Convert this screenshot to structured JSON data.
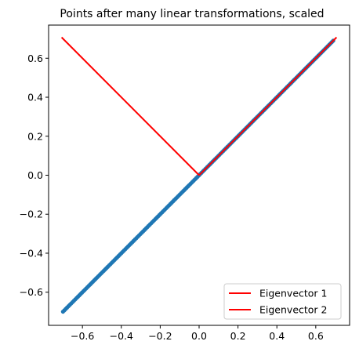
{
  "chart_data": {
    "type": "scatter",
    "title": "Points after many linear transformations, scaled",
    "xlabel": "",
    "ylabel": "",
    "xlim": [
      -0.774,
      0.774
    ],
    "ylim": [
      -0.77,
      0.77
    ],
    "xticks": [
      -0.6,
      -0.4,
      -0.2,
      0.0,
      0.2,
      0.4,
      0.6
    ],
    "xtick_labels": [
      "−0.6",
      "−0.4",
      "−0.2",
      "0.0",
      "0.2",
      "0.4",
      "0.6"
    ],
    "yticks": [
      -0.6,
      -0.4,
      -0.2,
      0.0,
      0.2,
      0.4,
      0.6
    ],
    "ytick_labels": [
      "−0.6",
      "−0.4",
      "−0.2",
      "0.0",
      "0.2",
      "0.4",
      "0.6"
    ],
    "grid": false,
    "scatter": {
      "color": "#1f77b4",
      "x_from": -0.7,
      "x_to": 0.69,
      "slope": 1.0,
      "count": 200
    },
    "series": [
      {
        "name": "Eigenvector 1",
        "color": "#ff0000",
        "x": [
          0,
          0.7071
        ],
        "y": [
          0,
          0.7071
        ]
      },
      {
        "name": "Eigenvector 2",
        "color": "#ff0000",
        "x": [
          0,
          -0.7071
        ],
        "y": [
          0,
          0.7071
        ]
      }
    ],
    "legend": {
      "placement": "lower right",
      "entries": [
        "Eigenvector 1",
        "Eigenvector 2"
      ]
    }
  }
}
